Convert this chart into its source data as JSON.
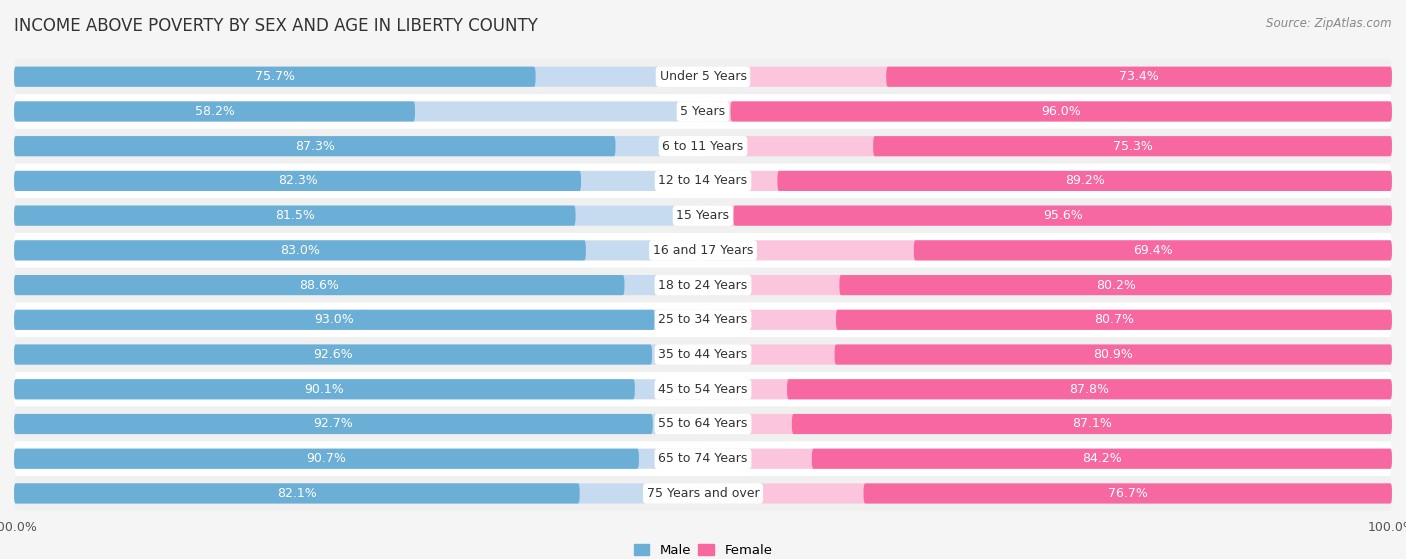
{
  "title": "INCOME ABOVE POVERTY BY SEX AND AGE IN LIBERTY COUNTY",
  "source": "Source: ZipAtlas.com",
  "categories": [
    "Under 5 Years",
    "5 Years",
    "6 to 11 Years",
    "12 to 14 Years",
    "15 Years",
    "16 and 17 Years",
    "18 to 24 Years",
    "25 to 34 Years",
    "35 to 44 Years",
    "45 to 54 Years",
    "55 to 64 Years",
    "65 to 74 Years",
    "75 Years and over"
  ],
  "male_values": [
    75.7,
    58.2,
    87.3,
    82.3,
    81.5,
    83.0,
    88.6,
    93.0,
    92.6,
    90.1,
    92.7,
    90.7,
    82.1
  ],
  "female_values": [
    73.4,
    96.0,
    75.3,
    89.2,
    95.6,
    69.4,
    80.2,
    80.7,
    80.9,
    87.8,
    87.1,
    84.2,
    76.7
  ],
  "male_color_full": "#6baed6",
  "male_color_empty": "#c6dbef",
  "female_color_full": "#f768a1",
  "female_color_empty": "#fcc5de",
  "row_bg_odd": "#f0f0f0",
  "row_bg_even": "#ffffff",
  "text_color_white": "#ffffff",
  "text_color_dark": "#555555",
  "background_color": "#f5f5f5",
  "axis_max": 100.0,
  "title_fontsize": 12,
  "label_fontsize": 9,
  "category_fontsize": 9,
  "source_fontsize": 8.5
}
